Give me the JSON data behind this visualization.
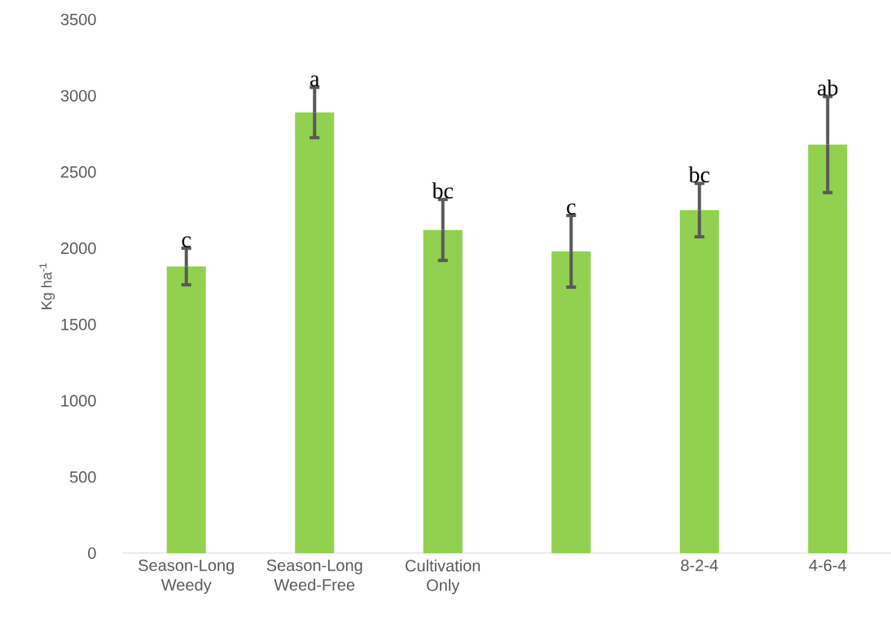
{
  "chart_data": {
    "type": "bar",
    "ylabel": "Kg ha$^{-1}$",
    "categories": [
      "Season-Long Weedy",
      "Season-Long Weed-Free",
      "Cultivation Only",
      null,
      "8-2-4",
      "4-6-4"
    ],
    "values": [
      1880,
      2890,
      2120,
      1980,
      2250,
      2680
    ],
    "errors": [
      120,
      165,
      200,
      235,
      175,
      315
    ],
    "color": "#92d050",
    "annotations": [
      "c",
      "a",
      "bc",
      "c",
      "bc",
      "ab"
    ],
    "ylim": [
      0,
      3500
    ],
    "yticks": [
      0,
      500,
      1000,
      1500,
      2000,
      2500,
      3000,
      3500
    ]
  }
}
